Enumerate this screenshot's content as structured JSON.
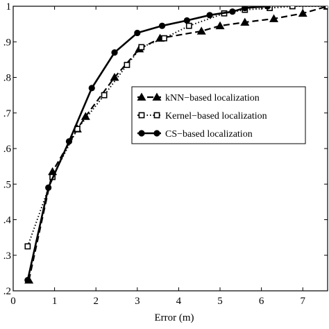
{
  "chart_data": {
    "type": "line",
    "title": "",
    "xlabel": "Error (m)",
    "ylabel": "",
    "xlim": [
      0,
      7.6
    ],
    "ylim": [
      0.2,
      1.0
    ],
    "xticks": [
      0,
      1,
      2,
      3,
      4,
      5,
      6,
      7
    ],
    "xtick_labels": [
      "0",
      "1",
      "2",
      "3",
      "4",
      "5",
      "6",
      "7"
    ],
    "yticks": [
      0.2,
      0.3,
      0.4,
      0.5,
      0.6,
      0.7,
      0.8,
      0.9,
      1.0
    ],
    "ytick_labels": [
      ".2",
      ".3",
      ".4",
      ".5",
      ".6",
      ".7",
      ".8",
      ".9",
      "1"
    ],
    "grid": false,
    "legend_position": "center-right",
    "series": [
      {
        "name": "kNN−based localization",
        "marker": "triangle",
        "line": "dashed",
        "color": "#000000",
        "x": [
          0.38,
          0.95,
          1.55,
          1.75,
          2.45,
          3.05,
          3.55,
          4.55,
          5.0,
          5.6,
          6.3,
          7.0,
          7.6
        ],
        "y": [
          0.23,
          0.535,
          0.655,
          0.69,
          0.8,
          0.88,
          0.91,
          0.93,
          0.945,
          0.955,
          0.965,
          0.98,
          1.0
        ]
      },
      {
        "name": "Kernel−based localization",
        "marker": "square",
        "line": "dotted",
        "color": "#000000",
        "x": [
          0.35,
          0.95,
          1.55,
          2.2,
          2.75,
          3.1,
          3.65,
          4.25,
          5.1,
          5.6,
          6.2,
          6.75,
          7.6
        ],
        "y": [
          0.325,
          0.52,
          0.655,
          0.75,
          0.835,
          0.885,
          0.91,
          0.945,
          0.98,
          0.99,
          0.995,
          1.0,
          1.0
        ]
      },
      {
        "name": "CS−based localization",
        "marker": "circle",
        "line": "solid",
        "color": "#000000",
        "x": [
          0.35,
          0.85,
          1.35,
          1.9,
          2.45,
          3.0,
          3.6,
          4.2,
          4.75,
          5.3,
          5.6,
          6.15
        ],
        "y": [
          0.23,
          0.49,
          0.62,
          0.77,
          0.87,
          0.925,
          0.945,
          0.96,
          0.975,
          0.985,
          0.995,
          1.0
        ]
      }
    ]
  }
}
